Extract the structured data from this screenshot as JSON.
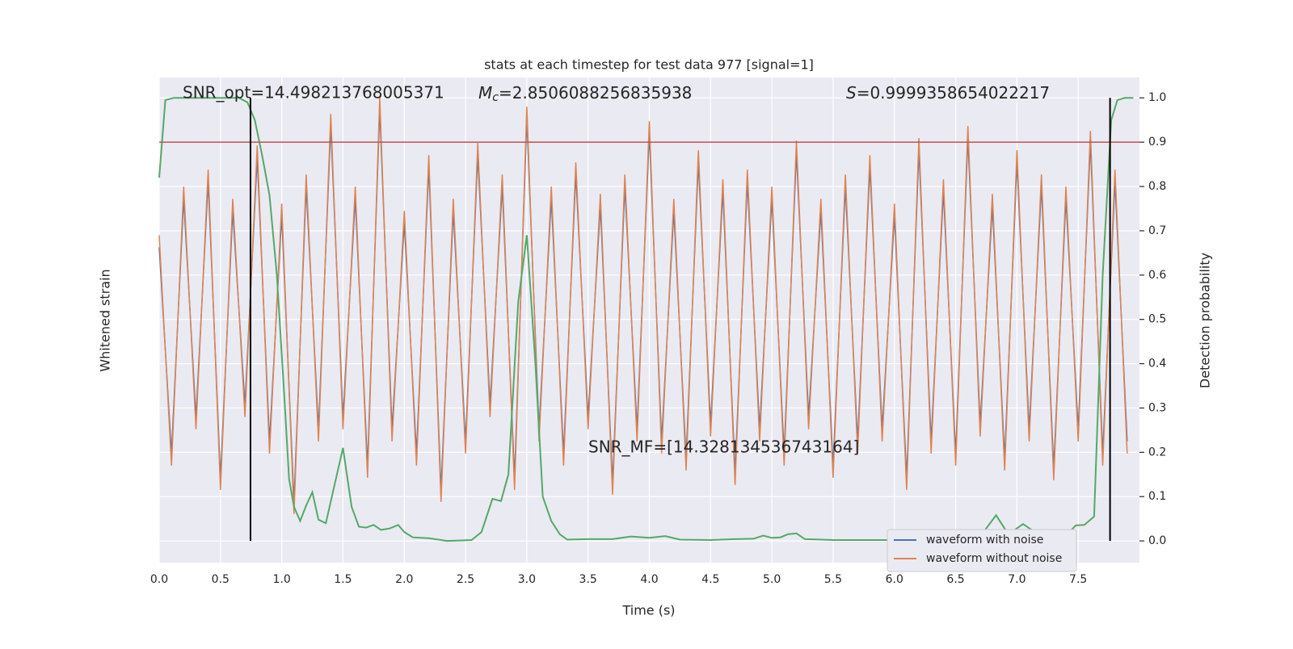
{
  "chart_data": {
    "type": "line",
    "title": "stats at each timestep for test data 977 [signal=1]",
    "xlabel": "Time (s)",
    "ylabel": "Whitened strain",
    "y2label": "Detection probability",
    "xlim": [
      0,
      8.0
    ],
    "xticks": [
      {
        "value": 0,
        "label": "0.0"
      },
      {
        "value": 0.5,
        "label": "0.5"
      },
      {
        "value": 1,
        "label": "1.0"
      },
      {
        "value": 1.5,
        "label": "1.5"
      },
      {
        "value": 2,
        "label": "2.0"
      },
      {
        "value": 2.5,
        "label": "2.5"
      },
      {
        "value": 3,
        "label": "3.0"
      },
      {
        "value": 3.5,
        "label": "3.5"
      },
      {
        "value": 4,
        "label": "4.0"
      },
      {
        "value": 4.5,
        "label": "4.5"
      },
      {
        "value": 5,
        "label": "5.0"
      },
      {
        "value": 5.5,
        "label": "5.5"
      },
      {
        "value": 6,
        "label": "6.0"
      },
      {
        "value": 6.5,
        "label": "6.5"
      },
      {
        "value": 7,
        "label": "7.0"
      },
      {
        "value": 7.5,
        "label": "7.5"
      }
    ],
    "ylim": [
      -1,
      1
    ],
    "y2lim": [
      -0.049,
      1.046
    ],
    "y2ticks": [
      {
        "value": 0,
        "label": "0.0"
      },
      0.1,
      0.2,
      0.3,
      0.4,
      0.5,
      0.6,
      0.7,
      0.8,
      0.9,
      {
        "value": 1,
        "label": "1.0"
      }
    ],
    "grid": true,
    "legend": "lower right",
    "series": [
      {
        "name": "waveform with noise",
        "color": "#4c72b0",
        "x": [
          0.0,
          0.1,
          0.2,
          0.3,
          0.4,
          0.5,
          0.6,
          0.7,
          0.8,
          0.9,
          1.0,
          1.1,
          1.2,
          1.3,
          1.4,
          1.5,
          1.6,
          1.7,
          1.8,
          1.9,
          2.0,
          2.1,
          2.2,
          2.3,
          2.4,
          2.5,
          2.6,
          2.7,
          2.8,
          2.9,
          3.0,
          3.1,
          3.2,
          3.3,
          3.4,
          3.5,
          3.6,
          3.7,
          3.8,
          3.9,
          4.0,
          4.1,
          4.2,
          4.3,
          4.4,
          4.5,
          4.6,
          4.7,
          4.8,
          4.9,
          5.0,
          5.1,
          5.2,
          5.3,
          5.4,
          5.5,
          5.6,
          5.7,
          5.8,
          5.9,
          6.0,
          6.1,
          6.2,
          6.3,
          6.4,
          6.5,
          6.6,
          6.7,
          6.8,
          6.9,
          7.0,
          7.1,
          7.2,
          7.3,
          7.4,
          7.5,
          7.6,
          7.7,
          7.8,
          7.9
        ],
        "values": [
          0.3,
          -0.55,
          0.5,
          -0.4,
          0.57,
          -0.65,
          0.45,
          -0.35,
          0.67,
          -0.5,
          0.43,
          -0.75,
          0.55,
          -0.45,
          0.8,
          -0.4,
          0.5,
          -0.6,
          0.87,
          -0.45,
          0.4,
          -0.55,
          0.63,
          -0.7,
          0.45,
          -0.5,
          0.68,
          -0.35,
          0.55,
          -0.65,
          0.83,
          -0.45,
          0.5,
          -0.55,
          0.6,
          -0.4,
          0.47,
          -0.67,
          0.55,
          -0.45,
          0.77,
          -0.5,
          0.45,
          -0.57,
          0.65,
          -0.43,
          0.53,
          -0.63,
          0.57,
          -0.45,
          0.5,
          -0.55,
          0.69,
          -0.4,
          0.45,
          -0.6,
          0.55,
          -0.5,
          0.63,
          -0.45,
          0.43,
          -0.65,
          0.7,
          -0.5,
          0.53,
          -0.55,
          0.75,
          -0.43,
          0.47,
          -0.57,
          0.65,
          -0.45,
          0.55,
          -0.61,
          0.5,
          -0.45,
          0.73,
          -0.55,
          0.57,
          -0.5
        ]
      },
      {
        "name": "waveform without noise",
        "color": "#dd8452",
        "x": [
          0.0,
          0.1,
          0.2,
          0.3,
          0.4,
          0.5,
          0.6,
          0.7,
          0.8,
          0.9,
          1.0,
          1.1,
          1.2,
          1.3,
          1.4,
          1.5,
          1.6,
          1.7,
          1.8,
          1.9,
          2.0,
          2.1,
          2.2,
          2.3,
          2.4,
          2.5,
          2.6,
          2.7,
          2.8,
          2.9,
          3.0,
          3.1,
          3.2,
          3.3,
          3.4,
          3.5,
          3.6,
          3.7,
          3.8,
          3.9,
          4.0,
          4.1,
          4.2,
          4.3,
          4.4,
          4.5,
          4.6,
          4.7,
          4.8,
          4.9,
          5.0,
          5.1,
          5.2,
          5.3,
          5.4,
          5.5,
          5.6,
          5.7,
          5.8,
          5.9,
          6.0,
          6.1,
          6.2,
          6.3,
          6.4,
          6.5,
          6.6,
          6.7,
          6.8,
          6.9,
          7.0,
          7.1,
          7.2,
          7.3,
          7.4,
          7.5,
          7.6,
          7.7,
          7.8,
          7.9
        ],
        "values": [
          0.35,
          -0.6,
          0.55,
          -0.45,
          0.62,
          -0.7,
          0.5,
          -0.4,
          0.72,
          -0.55,
          0.48,
          -0.8,
          0.6,
          -0.5,
          0.85,
          -0.45,
          0.55,
          -0.65,
          0.92,
          -0.5,
          0.45,
          -0.6,
          0.68,
          -0.75,
          0.5,
          -0.55,
          0.73,
          -0.4,
          0.6,
          -0.7,
          0.88,
          -0.5,
          0.55,
          -0.6,
          0.65,
          -0.45,
          0.52,
          -0.72,
          0.6,
          -0.5,
          0.82,
          -0.55,
          0.5,
          -0.62,
          0.7,
          -0.48,
          0.58,
          -0.68,
          0.62,
          -0.5,
          0.55,
          -0.6,
          0.74,
          -0.45,
          0.5,
          -0.65,
          0.6,
          -0.55,
          0.68,
          -0.5,
          0.48,
          -0.7,
          0.75,
          -0.55,
          0.58,
          -0.6,
          0.8,
          -0.48,
          0.52,
          -0.62,
          0.7,
          -0.5,
          0.6,
          -0.66,
          0.55,
          -0.5,
          0.78,
          -0.6,
          0.62,
          -0.55
        ]
      },
      {
        "axis": "y2",
        "color": "#55a868",
        "x": [
          0,
          0.05,
          0.12,
          0.3,
          0.5,
          0.65,
          0.72,
          0.78,
          0.84,
          0.9,
          0.96,
          1.02,
          1.06,
          1.1,
          1.15,
          1.2,
          1.25,
          1.3,
          1.36,
          1.5,
          1.57,
          1.63,
          1.69,
          1.75,
          1.81,
          1.88,
          1.95,
          2.0,
          2.07,
          2.2,
          2.35,
          2.55,
          2.63,
          2.72,
          2.79,
          2.85,
          2.93,
          3.0,
          3.07,
          3.13,
          3.2,
          3.27,
          3.33,
          3.5,
          3.7,
          3.85,
          4.0,
          4.13,
          4.25,
          4.5,
          4.7,
          4.85,
          4.93,
          5.0,
          5.07,
          5.13,
          5.2,
          5.27,
          5.5,
          6.0,
          6.5,
          6.7,
          6.83,
          6.93,
          7.05,
          7.2,
          7.4,
          7.48,
          7.55,
          7.63,
          7.7,
          7.77,
          7.82,
          7.88,
          7.95
        ],
        "values": [
          0.82,
          0.995,
          1.0,
          1.0,
          1.0,
          1.0,
          0.99,
          0.95,
          0.87,
          0.78,
          0.6,
          0.33,
          0.14,
          0.077,
          0.045,
          0.08,
          0.11,
          0.048,
          0.04,
          0.21,
          0.077,
          0.032,
          0.03,
          0.036,
          0.025,
          0.028,
          0.036,
          0.02,
          0.008,
          0.006,
          0.0,
          0.002,
          0.02,
          0.095,
          0.09,
          0.15,
          0.54,
          0.69,
          0.4,
          0.1,
          0.045,
          0.015,
          0.003,
          0.004,
          0.004,
          0.01,
          0.007,
          0.011,
          0.003,
          0.002,
          0.004,
          0.005,
          0.012,
          0.007,
          0.008,
          0.015,
          0.017,
          0.004,
          0.002,
          0.002,
          0.003,
          0.01,
          0.058,
          0.015,
          0.038,
          0.01,
          0.012,
          0.035,
          0.036,
          0.055,
          0.6,
          0.95,
          0.995,
          1.0,
          1.0
        ]
      }
    ],
    "hlines": [
      {
        "value": 0.9,
        "color": "#c44e52",
        "axis": "y2"
      }
    ],
    "vlines": [
      {
        "value": 0.745,
        "color": "#000000"
      },
      {
        "value": 7.76,
        "color": "#000000"
      }
    ],
    "annotations": {
      "snr_opt": "SNR_opt=14.498213768005371",
      "chirp_mass": {
        "symbol": "M",
        "subscript": "c",
        "text": "=2.8506088256835938"
      },
      "s": {
        "symbol": "S",
        "text": "=0.9999358654022217"
      },
      "snr_mf": "SNR_MF=[14.328134536743164]"
    }
  }
}
